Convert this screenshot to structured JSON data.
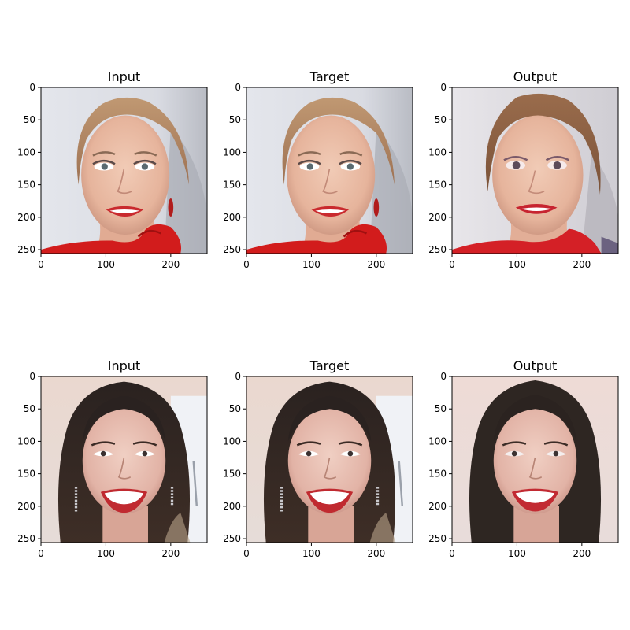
{
  "figure": {
    "rows": [
      {
        "panels": [
          {
            "title": "Input",
            "content": "older-woman-input"
          },
          {
            "title": "Target",
            "content": "older-woman-target"
          },
          {
            "title": "Output",
            "content": "older-woman-output"
          }
        ]
      },
      {
        "panels": [
          {
            "title": "Input",
            "content": "young-woman-input"
          },
          {
            "title": "Target",
            "content": "young-woman-target"
          },
          {
            "title": "Output",
            "content": "young-woman-output"
          }
        ]
      }
    ],
    "x_ticks": [
      0,
      100,
      200
    ],
    "y_ticks": [
      0,
      50,
      100,
      150,
      200,
      250
    ],
    "x_range": [
      0,
      256
    ],
    "y_range": [
      0,
      256
    ]
  }
}
